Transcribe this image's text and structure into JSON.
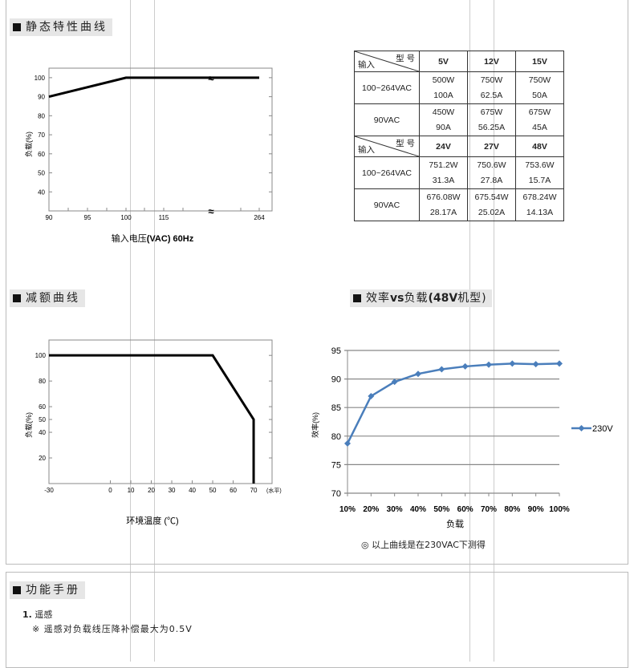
{
  "sections": {
    "static": "静态特性曲线",
    "derating": "减额曲线",
    "efficiency_pre": "效率",
    "efficiency_vs": "vs",
    "efficiency_mid": "负载",
    "efficiency_bold": "(48V",
    "efficiency_post": "机型)",
    "manual": "功能手册"
  },
  "table": {
    "corner_model": "型 号",
    "corner_input": "输入",
    "groups": [
      {
        "models": [
          "5V",
          "12V",
          "15V"
        ],
        "rows": [
          {
            "input": "100~264VAC",
            "cells": [
              [
                "500W",
                "100A"
              ],
              [
                "750W",
                "62.5A"
              ],
              [
                "750W",
                "50A"
              ]
            ]
          },
          {
            "input": "90VAC",
            "cells": [
              [
                "450W",
                "90A"
              ],
              [
                "675W",
                "56.25A"
              ],
              [
                "675W",
                "45A"
              ]
            ]
          }
        ]
      },
      {
        "models": [
          "24V",
          "27V",
          "48V"
        ],
        "rows": [
          {
            "input": "100~264VAC",
            "cells": [
              [
                "751.2W",
                "31.3A"
              ],
              [
                "750.6W",
                "27.8A"
              ],
              [
                "753.6W",
                "15.7A"
              ]
            ]
          },
          {
            "input": "90VAC",
            "cells": [
              [
                "676.08W",
                "28.17A"
              ],
              [
                "675.54W",
                "25.02A"
              ],
              [
                "678.24W",
                "14.13A"
              ]
            ]
          }
        ]
      }
    ]
  },
  "chart_data": [
    {
      "type": "line",
      "xlabel_cn": "输入电压",
      "xlabel_bold": "(VAC) 60Hz",
      "ylabel": "负载(%)",
      "x_ticks": [
        "90",
        "95",
        "100",
        "115",
        "264"
      ],
      "y_ticks": [
        40,
        50,
        60,
        70,
        80,
        90,
        100
      ],
      "ylim": [
        30,
        105
      ],
      "axis_break": true,
      "series": [
        {
          "x": [
            "90",
            "100",
            "264"
          ],
          "y": [
            90,
            100,
            100
          ]
        }
      ]
    },
    {
      "type": "line",
      "xlabel": "环境温度 (℃)",
      "x_unit": "(水平)",
      "ylabel": "负载(%)",
      "x_ticks": [
        -30,
        0,
        10,
        20,
        30,
        40,
        50,
        60,
        70
      ],
      "y_ticks": [
        20,
        40,
        50,
        60,
        80,
        100
      ],
      "xlim": [
        -30,
        79
      ],
      "ylim": [
        0,
        112
      ],
      "series": [
        {
          "x": [
            -30,
            50,
            70,
            70
          ],
          "y": [
            100,
            100,
            50,
            0
          ]
        }
      ]
    },
    {
      "type": "line",
      "xlabel": "负载",
      "ylabel": "效率(%)",
      "categories": [
        "10%",
        "20%",
        "30%",
        "40%",
        "50%",
        "60%",
        "70%",
        "80%",
        "90%",
        "100%"
      ],
      "y_ticks": [
        70,
        75,
        80,
        85,
        90,
        95
      ],
      "ylim": [
        70,
        95
      ],
      "grid": true,
      "legend": "right",
      "series": [
        {
          "name": "230V",
          "color": "#4a7ebb",
          "values": [
            78.7,
            87.0,
            89.5,
            90.9,
            91.7,
            92.2,
            92.5,
            92.7,
            92.6,
            92.7
          ]
        }
      ],
      "note": "◎ 以上曲线是在230VAC下测得"
    }
  ],
  "manual": {
    "item_num": "1.",
    "item_title": "遥感",
    "item_note": "※ 遥感对负载线压降补偿最大为0.5V"
  }
}
